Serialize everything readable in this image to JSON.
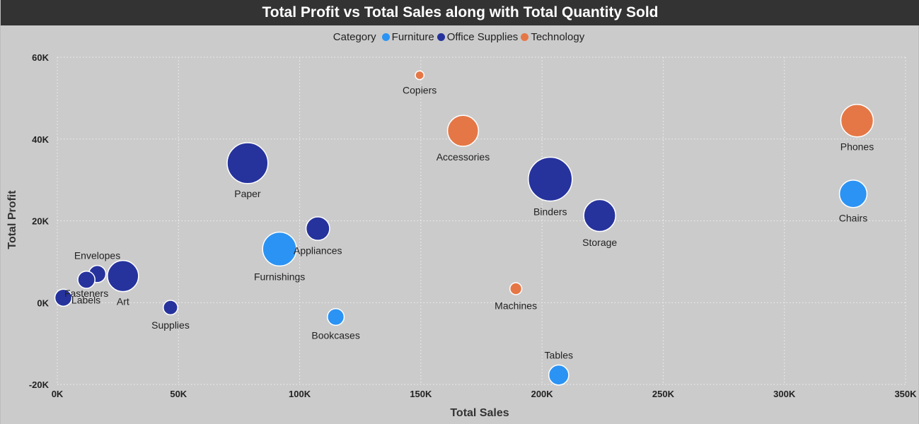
{
  "chart_data": {
    "type": "scatter",
    "title": "Total Profit vs Total Sales along with Total Quantity Sold",
    "xlabel": "Total Sales",
    "ylabel": "Total Profit",
    "xlim": [
      0,
      350000
    ],
    "ylim": [
      -20000,
      60000
    ],
    "x_ticks": [
      "0K",
      "50K",
      "100K",
      "150K",
      "200K",
      "250K",
      "300K",
      "350K"
    ],
    "y_ticks": [
      "60K",
      "40K",
      "20K",
      "0K",
      "-20K"
    ],
    "x_tick_values": [
      0,
      50000,
      100000,
      150000,
      200000,
      250000,
      300000,
      350000
    ],
    "y_tick_values": [
      60000,
      40000,
      20000,
      0,
      -20000
    ],
    "grid": true,
    "legend_title": "Category",
    "legend_position": "top-center",
    "size_measure": "Total Quantity Sold",
    "categories": [
      {
        "name": "Furniture",
        "color": "#2b93f4"
      },
      {
        "name": "Office Supplies",
        "color": "#26339d"
      },
      {
        "name": "Technology",
        "color": "#e57746"
      }
    ],
    "points": [
      {
        "label": "Copiers",
        "category": "Technology",
        "x": 149500,
        "y": 55600,
        "size": 234
      },
      {
        "label": "Accessories",
        "category": "Technology",
        "x": 167400,
        "y": 42000,
        "size": 2976
      },
      {
        "label": "Phones",
        "category": "Technology",
        "x": 330000,
        "y": 44500,
        "size": 3289
      },
      {
        "label": "Machines",
        "category": "Technology",
        "x": 189200,
        "y": 3400,
        "size": 440
      },
      {
        "label": "Paper",
        "category": "Office Supplies",
        "x": 78500,
        "y": 34100,
        "size": 5178
      },
      {
        "label": "Binders",
        "category": "Office Supplies",
        "x": 203400,
        "y": 30200,
        "size": 5974
      },
      {
        "label": "Storage",
        "category": "Office Supplies",
        "x": 223800,
        "y": 21300,
        "size": 3158
      },
      {
        "label": "Appliances",
        "category": "Office Supplies",
        "x": 107500,
        "y": 18100,
        "size": 1729
      },
      {
        "label": "Envelopes",
        "category": "Office Supplies",
        "x": 16500,
        "y": 7000,
        "size": 906
      },
      {
        "label": "Fasteners",
        "category": "Office Supplies",
        "x": 12000,
        "y": 5600,
        "size": 914
      },
      {
        "label": "Art",
        "category": "Office Supplies",
        "x": 27100,
        "y": 6500,
        "size": 3000
      },
      {
        "label": "Labels",
        "category": "Office Supplies",
        "x": 2500,
        "y": 1200,
        "size": 900
      },
      {
        "label": "Supplies",
        "category": "Office Supplies",
        "x": 46700,
        "y": -1200,
        "size": 647
      },
      {
        "label": "Chairs",
        "category": "Furniture",
        "x": 328400,
        "y": 26600,
        "size": 2356
      },
      {
        "label": "Furnishings",
        "category": "Furniture",
        "x": 91700,
        "y": 13100,
        "size": 3563
      },
      {
        "label": "Bookcases",
        "category": "Furniture",
        "x": 114900,
        "y": -3500,
        "size": 868
      },
      {
        "label": "Tables",
        "category": "Furniture",
        "x": 206900,
        "y": -17700,
        "size": 1241
      }
    ]
  }
}
